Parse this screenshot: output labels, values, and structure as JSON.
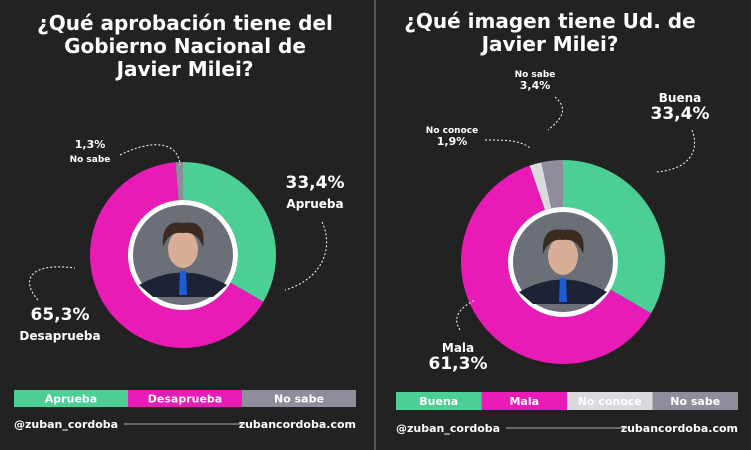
{
  "chart_data": [
    {
      "type": "pie",
      "title": "¿Qué aprobación tiene del Gobierno Nacional de Javier Milei?",
      "categories": [
        "Aprueba",
        "Desaprueba",
        "No sabe"
      ],
      "values": [
        33.4,
        65.3,
        1.3
      ],
      "value_labels": [
        "33,4%",
        "65,3%",
        "1,3%"
      ],
      "colors": [
        "#4bcf95",
        "#e81bb6",
        "#8d8e99"
      ],
      "handle": "@zuban_cordoba",
      "website": "zubancordoba.com"
    },
    {
      "type": "pie",
      "title": "¿Qué imagen tiene Ud. de Javier Milei?",
      "categories": [
        "Buena",
        "Mala",
        "No conoce",
        "No sabe"
      ],
      "values": [
        33.4,
        61.3,
        1.9,
        3.4
      ],
      "value_labels": [
        "33,4%",
        "61,3%",
        "1,9%",
        "3,4%"
      ],
      "colors": [
        "#4bcf95",
        "#e81bb6",
        "#d9d9de",
        "#8d8e99"
      ],
      "handle": "@zuban_cordoba",
      "website": "zubancordoba.com"
    }
  ]
}
